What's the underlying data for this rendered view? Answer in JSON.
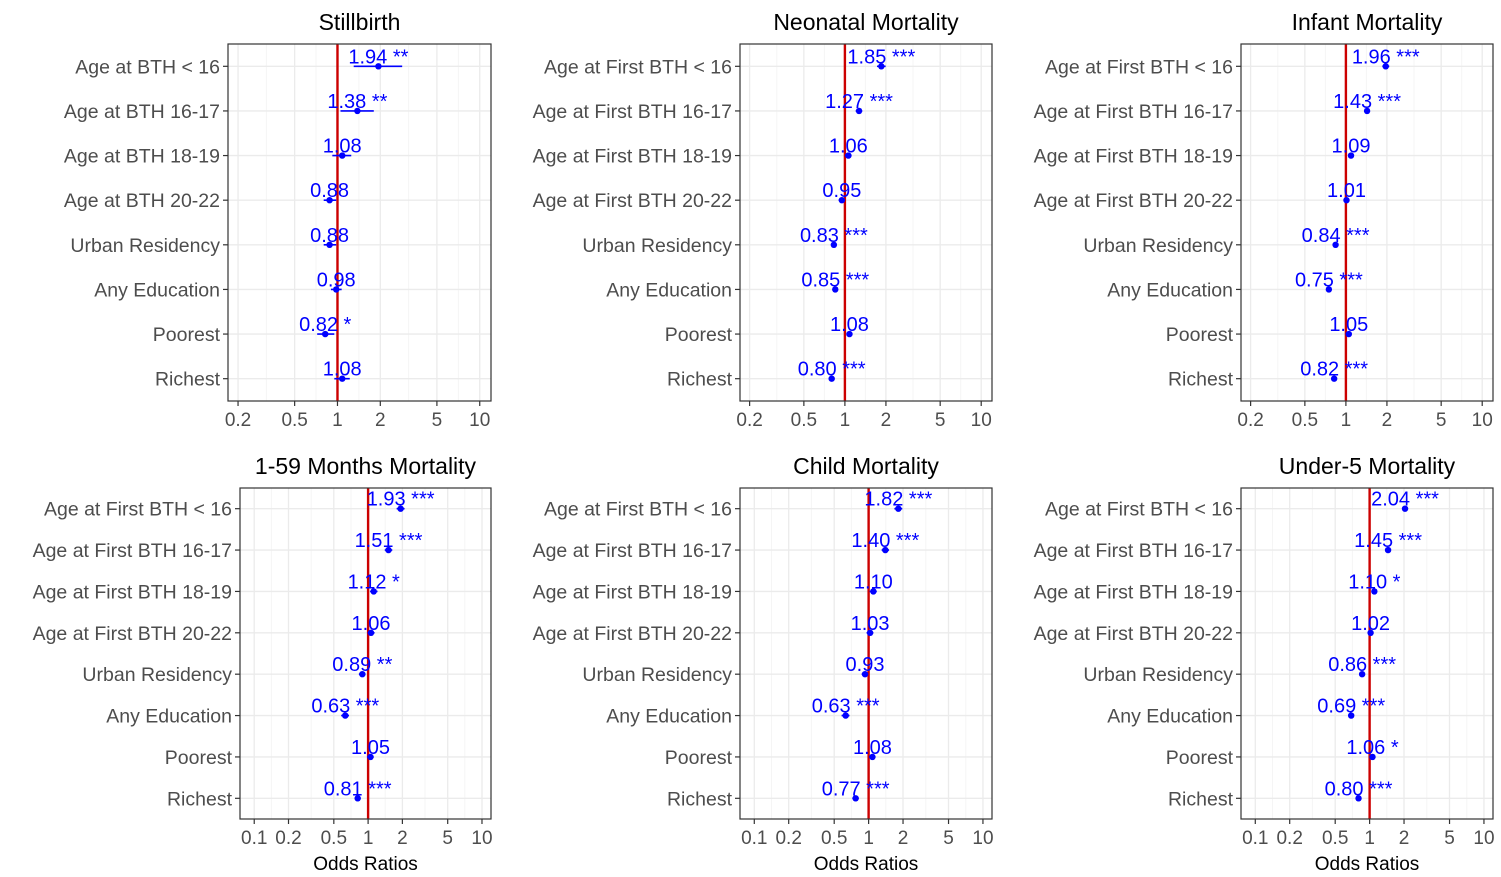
{
  "colors": {
    "point": "#0000ff",
    "ref_line": "#cc0000",
    "grid": "#ebebeb",
    "frame": "#333333",
    "tick_text": "#4d4d4d",
    "title": "#000000"
  },
  "chart_data": [
    {
      "type": "forest",
      "title": "Stillbirth",
      "xlabel": "",
      "x_scale": "log",
      "xlim": [
        0.17,
        12
      ],
      "xticks": [
        "0.2",
        "0.5",
        "1",
        "2",
        "5",
        "10"
      ],
      "reference_line": 1,
      "categories": [
        "Age at BTH < 16",
        "Age at BTH 16-17",
        "Age at BTH 18-19",
        "Age at BTH 20-22",
        "Urban Residency",
        "Any Education",
        "Poorest",
        "Richest"
      ],
      "odds_ratios": [
        1.94,
        1.38,
        1.08,
        0.88,
        0.88,
        0.98,
        0.82,
        1.08
      ],
      "ci_low": [
        1.3,
        1.05,
        0.92,
        0.8,
        0.8,
        0.9,
        0.72,
        0.95
      ],
      "ci_high": [
        2.85,
        1.8,
        1.25,
        0.98,
        0.98,
        1.07,
        0.95,
        1.22
      ],
      "significance": [
        "**",
        "**",
        "",
        "",
        "",
        "",
        "*",
        ""
      ],
      "labels": [
        "1.94 **",
        "1.38 **",
        "1.08",
        "0.88",
        "0.88",
        "0.98",
        "0.82 *",
        "1.08"
      ]
    },
    {
      "type": "forest",
      "title": "Neonatal Mortality",
      "xlabel": "",
      "x_scale": "log",
      "xlim": [
        0.17,
        12
      ],
      "xticks": [
        "0.2",
        "0.5",
        "1",
        "2",
        "5",
        "10"
      ],
      "reference_line": 1,
      "categories": [
        "Age at First BTH < 16",
        "Age at First BTH 16-17",
        "Age at First BTH 18-19",
        "Age at First BTH 20-22",
        "Urban Residency",
        "Any Education",
        "Poorest",
        "Richest"
      ],
      "odds_ratios": [
        1.85,
        1.27,
        1.06,
        0.95,
        0.83,
        0.85,
        1.08,
        0.8
      ],
      "ci_low": [
        1.72,
        1.2,
        1.0,
        0.9,
        0.79,
        0.81,
        1.03,
        0.76
      ],
      "ci_high": [
        1.99,
        1.34,
        1.12,
        1.0,
        0.87,
        0.89,
        1.13,
        0.84
      ],
      "significance": [
        "***",
        "***",
        "",
        "",
        "***",
        "***",
        "",
        "***"
      ],
      "labels": [
        "1.85 ***",
        "1.27 ***",
        "1.06",
        "0.95",
        "0.83 ***",
        "0.85 ***",
        "1.08",
        "0.80 ***"
      ]
    },
    {
      "type": "forest",
      "title": "Infant Mortality",
      "xlabel": "",
      "x_scale": "log",
      "xlim": [
        0.17,
        12
      ],
      "xticks": [
        "0.2",
        "0.5",
        "1",
        "2",
        "5",
        "10"
      ],
      "reference_line": 1,
      "categories": [
        "Age at First BTH < 16",
        "Age at First BTH 16-17",
        "Age at First BTH 18-19",
        "Age at First BTH 20-22",
        "Urban Residency",
        "Any Education",
        "Poorest",
        "Richest"
      ],
      "odds_ratios": [
        1.96,
        1.43,
        1.09,
        1.01,
        0.84,
        0.75,
        1.05,
        0.82
      ],
      "ci_low": [
        1.85,
        1.36,
        1.04,
        0.97,
        0.81,
        0.72,
        1.01,
        0.79
      ],
      "ci_high": [
        2.08,
        1.5,
        1.14,
        1.05,
        0.87,
        0.78,
        1.09,
        0.85
      ],
      "significance": [
        "***",
        "***",
        "",
        "",
        "***",
        "***",
        "",
        "***"
      ],
      "labels": [
        "1.96 ***",
        "1.43 ***",
        "1.09",
        "1.01",
        "0.84 ***",
        "0.75 ***",
        "1.05",
        "0.82 ***"
      ]
    },
    {
      "type": "forest",
      "title": "1-59 Months Mortality",
      "xlabel": "Odds Ratios",
      "x_scale": "log",
      "xlim": [
        0.075,
        12
      ],
      "xticks": [
        "0.1",
        "0.2",
        "0.5",
        "1",
        "2",
        "5",
        "10"
      ],
      "reference_line": 1,
      "categories": [
        "Age at First BTH < 16",
        "Age at First BTH 16-17",
        "Age at First BTH 18-19",
        "Age at First BTH 20-22",
        "Urban Residency",
        "Any Education",
        "Poorest",
        "Richest"
      ],
      "odds_ratios": [
        1.93,
        1.51,
        1.12,
        1.06,
        0.89,
        0.63,
        1.05,
        0.81
      ],
      "ci_low": [
        1.78,
        1.4,
        1.04,
        0.99,
        0.83,
        0.58,
        0.98,
        0.76
      ],
      "ci_high": [
        2.09,
        1.63,
        1.21,
        1.14,
        0.95,
        0.68,
        1.12,
        0.86
      ],
      "significance": [
        "***",
        "***",
        "*",
        "",
        "**",
        "***",
        "",
        "***"
      ],
      "labels": [
        "1.93 ***",
        "1.51 ***",
        "1.12 *",
        "1.06",
        "0.89 **",
        "0.63 ***",
        "1.05",
        "0.81 ***"
      ]
    },
    {
      "type": "forest",
      "title": "Child Mortality",
      "xlabel": "Odds Ratios",
      "x_scale": "log",
      "xlim": [
        0.075,
        12
      ],
      "xticks": [
        "0.1",
        "0.2",
        "0.5",
        "1",
        "2",
        "5",
        "10"
      ],
      "reference_line": 1,
      "categories": [
        "Age at First BTH < 16",
        "Age at First BTH 16-17",
        "Age at First BTH 18-19",
        "Age at First BTH 20-22",
        "Urban Residency",
        "Any Education",
        "Poorest",
        "Richest"
      ],
      "odds_ratios": [
        1.82,
        1.4,
        1.1,
        1.03,
        0.93,
        0.63,
        1.08,
        0.77
      ],
      "ci_low": [
        1.68,
        1.3,
        1.02,
        0.96,
        0.87,
        0.58,
        1.01,
        0.72
      ],
      "ci_high": [
        1.97,
        1.51,
        1.18,
        1.1,
        0.99,
        0.68,
        1.15,
        0.82
      ],
      "significance": [
        "***",
        "***",
        "",
        "",
        "",
        "***",
        "",
        "***"
      ],
      "labels": [
        "1.82 ***",
        "1.40 ***",
        "1.10",
        "1.03",
        "0.93",
        "0.63 ***",
        "1.08",
        "0.77 ***"
      ]
    },
    {
      "type": "forest",
      "title": "Under-5 Mortality",
      "xlabel": "Odds Ratios",
      "x_scale": "log",
      "xlim": [
        0.075,
        12
      ],
      "xticks": [
        "0.1",
        "0.2",
        "0.5",
        "1",
        "2",
        "5",
        "10"
      ],
      "reference_line": 1,
      "categories": [
        "Age at First BTH < 16",
        "Age at First BTH 16-17",
        "Age at First BTH 18-19",
        "Age at First BTH 20-22",
        "Urban Residency",
        "Any Education",
        "Poorest",
        "Richest"
      ],
      "odds_ratios": [
        2.04,
        1.45,
        1.1,
        1.02,
        0.86,
        0.69,
        1.06,
        0.8
      ],
      "ci_low": [
        1.92,
        1.38,
        1.05,
        0.98,
        0.83,
        0.66,
        1.01,
        0.77
      ],
      "ci_high": [
        2.17,
        1.52,
        1.15,
        1.06,
        0.89,
        0.72,
        1.11,
        0.83
      ],
      "significance": [
        "***",
        "***",
        "*",
        "",
        "***",
        "***",
        "*",
        "***"
      ],
      "labels": [
        "2.04 ***",
        "1.45 ***",
        "1.10 *",
        "1.02",
        "0.86 ***",
        "0.69 ***",
        "1.06 *",
        "0.80 ***"
      ]
    }
  ]
}
